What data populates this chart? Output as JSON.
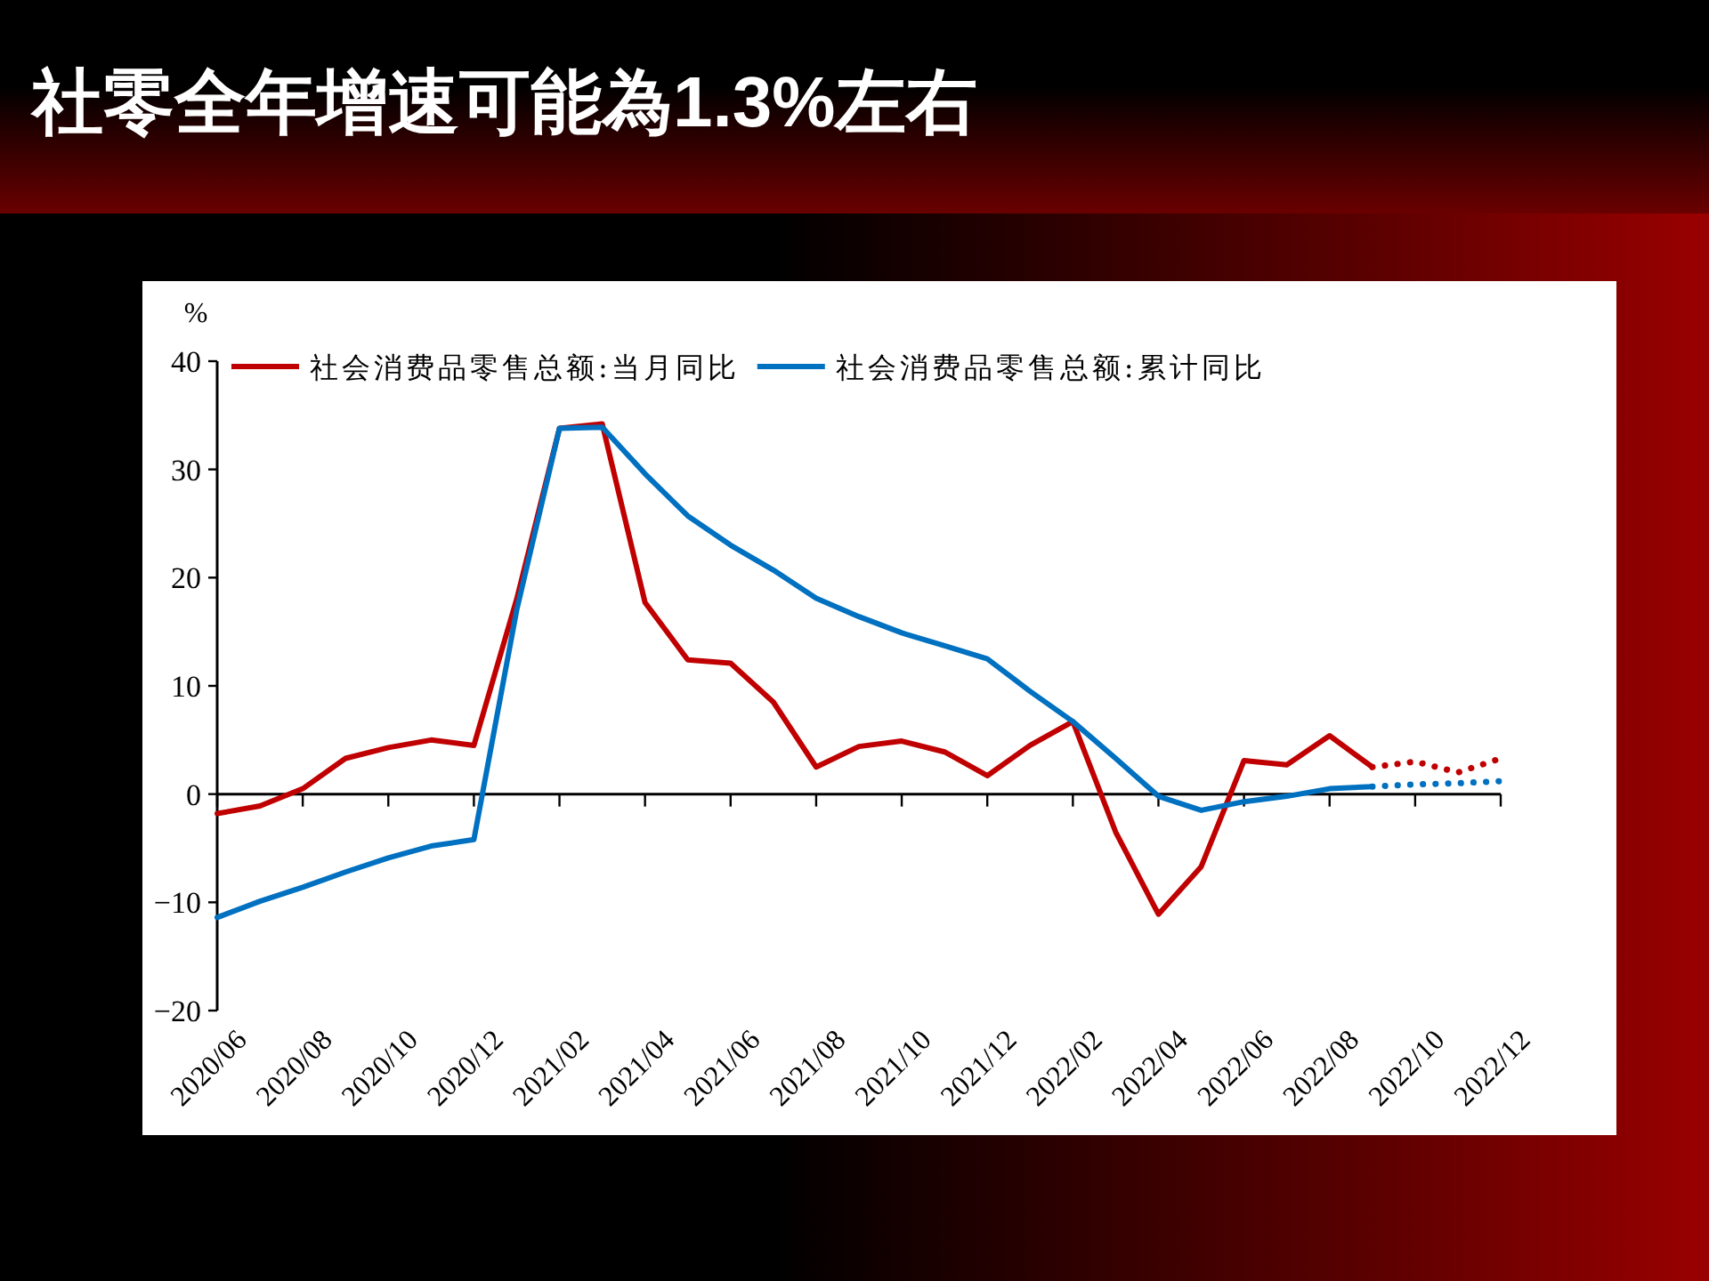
{
  "chart_data": {
    "type": "line",
    "title": "社零全年增速可能為1.3%左右",
    "ylabel": "%",
    "categories": [
      "2020/06",
      null,
      "2020/08",
      null,
      "2020/10",
      null,
      "2020/12",
      null,
      "2021/02",
      null,
      "2021/04",
      null,
      "2021/06",
      null,
      "2021/08",
      null,
      "2021/10",
      null,
      "2021/12",
      null,
      "2022/02",
      null,
      "2022/04",
      null,
      "2022/06",
      null,
      "2022/08",
      null,
      "2022/10",
      null,
      "2022/12"
    ],
    "series": [
      {
        "name": "社会消费品零售总额:当月同比",
        "color": "#c00000",
        "line_style": "solid",
        "values": [
          -1.8,
          -1.1,
          0.5,
          3.3,
          4.3,
          5.0,
          4.5,
          18,
          33.8,
          34.2,
          17.7,
          12.4,
          12.1,
          8.5,
          2.5,
          4.4,
          4.9,
          3.9,
          1.7,
          4.5,
          6.7,
          -3.5,
          -11.1,
          -6.7,
          3.1,
          2.7,
          5.4,
          2.5,
          null,
          null,
          null
        ]
      },
      {
        "name": "社会消费品零售总额:累计同比",
        "color": "#0070c0",
        "line_style": "solid",
        "values": [
          -11.4,
          -9.9,
          -8.6,
          -7.2,
          -5.9,
          -4.8,
          -4.2,
          17,
          33.8,
          33.9,
          29.6,
          25.7,
          23.0,
          20.7,
          18.1,
          16.4,
          14.9,
          13.7,
          12.5,
          9.5,
          6.7,
          3.3,
          -0.2,
          -1.5,
          -0.7,
          -0.2,
          0.5,
          0.7,
          null,
          null,
          null
        ]
      },
      {
        "color": "#c00000",
        "line_style": "dotted",
        "values": [
          null,
          null,
          null,
          null,
          null,
          null,
          null,
          null,
          null,
          null,
          null,
          null,
          null,
          null,
          null,
          null,
          null,
          null,
          null,
          null,
          null,
          null,
          null,
          null,
          null,
          null,
          null,
          2.5,
          3.0,
          2.0,
          3.3
        ]
      },
      {
        "color": "#0070c0",
        "line_style": "dotted",
        "values": [
          null,
          null,
          null,
          null,
          null,
          null,
          null,
          null,
          null,
          null,
          null,
          null,
          null,
          null,
          null,
          null,
          null,
          null,
          null,
          null,
          null,
          null,
          null,
          null,
          null,
          null,
          null,
          0.7,
          0.9,
          1.0,
          1.2
        ]
      }
    ],
    "ylim": [
      -20,
      40
    ],
    "yticks": [
      -20,
      -10,
      0,
      10,
      20,
      30,
      40
    ],
    "legend": "top"
  }
}
